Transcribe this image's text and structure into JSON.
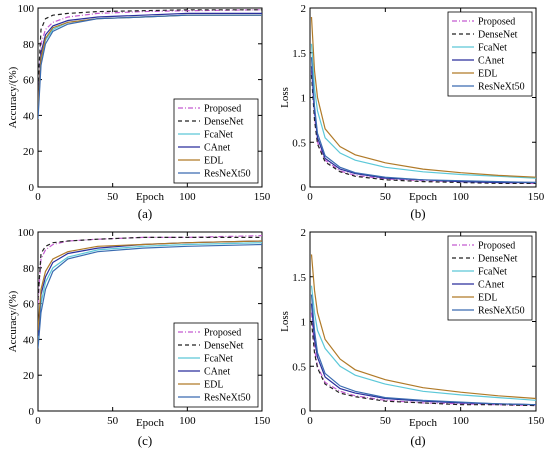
{
  "colors": {
    "Proposed": "#c45ad0",
    "DenseNet": "#222222",
    "FcaNet": "#5cc8d8",
    "CAnet": "#2a2f9c",
    "EDL": "#b07a28",
    "ResNeXt50": "#3a6bb0"
  },
  "chart_data": [
    {
      "id": "a",
      "type": "line",
      "caption": "(a)",
      "xlabel": "Epoch",
      "ylabel": "Accuracy/(%)",
      "xlim": [
        0,
        150
      ],
      "ylim": [
        0,
        100
      ],
      "xticks": [
        "0",
        "50",
        "100",
        "150"
      ],
      "yticks": [
        "0",
        "20",
        "40",
        "60",
        "80",
        "100"
      ],
      "legend": "bottom-right",
      "legend_order": [
        "Proposed",
        "DenseNet",
        "FcaNet",
        "CAnet",
        "EDL",
        "ResNeXt50"
      ],
      "series": [
        {
          "name": "Proposed",
          "x": [
            0,
            2,
            5,
            10,
            20,
            40,
            70,
            100,
            150
          ],
          "y": [
            40,
            80,
            88,
            92,
            95,
            97,
            98,
            98.5,
            99
          ]
        },
        {
          "name": "DenseNet",
          "x": [
            0,
            2,
            5,
            10,
            20,
            40,
            70,
            100,
            150
          ],
          "y": [
            55,
            88,
            94,
            96,
            97,
            98,
            98.5,
            99,
            99
          ]
        },
        {
          "name": "FcaNet",
          "x": [
            0,
            2,
            5,
            10,
            20,
            40,
            70,
            100,
            150
          ],
          "y": [
            42,
            70,
            82,
            88,
            92,
            94,
            95,
            96,
            96
          ]
        },
        {
          "name": "CAnet",
          "x": [
            0,
            2,
            5,
            10,
            20,
            40,
            70,
            100,
            150
          ],
          "y": [
            45,
            75,
            85,
            90,
            93,
            95,
            96,
            97,
            97
          ]
        },
        {
          "name": "EDL",
          "x": [
            0,
            2,
            5,
            10,
            20,
            40,
            70,
            100,
            150
          ],
          "y": [
            44,
            72,
            83,
            89,
            92,
            94,
            95,
            96,
            96
          ]
        },
        {
          "name": "ResNeXt50",
          "x": [
            0,
            2,
            5,
            10,
            20,
            40,
            70,
            100,
            150
          ],
          "y": [
            38,
            68,
            80,
            87,
            91,
            94,
            95,
            96,
            96
          ]
        }
      ]
    },
    {
      "id": "b",
      "type": "line",
      "caption": "(b)",
      "xlabel": "Epoch",
      "ylabel": "Loss",
      "xlim": [
        0,
        150
      ],
      "ylim": [
        0,
        2
      ],
      "xticks": [
        "0",
        "50",
        "100",
        "150"
      ],
      "yticks": [
        "0",
        "0.5",
        "1",
        "1.5",
        "2"
      ],
      "legend": "top-right",
      "legend_order": [
        "Proposed",
        "DenseNet",
        "FcaNet",
        "CAnet",
        "EDL",
        "ResNeXt50"
      ],
      "series": [
        {
          "name": "Proposed",
          "x": [
            1,
            3,
            5,
            10,
            20,
            30,
            50,
            75,
            100,
            125,
            150
          ],
          "y": [
            1.3,
            0.8,
            0.5,
            0.3,
            0.18,
            0.13,
            0.09,
            0.07,
            0.06,
            0.05,
            0.04
          ]
        },
        {
          "name": "DenseNet",
          "x": [
            1,
            3,
            5,
            10,
            20,
            30,
            50,
            75,
            100,
            125,
            150
          ],
          "y": [
            1.25,
            0.75,
            0.48,
            0.28,
            0.17,
            0.12,
            0.08,
            0.06,
            0.05,
            0.04,
            0.04
          ]
        },
        {
          "name": "FcaNet",
          "x": [
            1,
            3,
            5,
            10,
            20,
            30,
            50,
            75,
            100,
            125,
            150
          ],
          "y": [
            1.6,
            1.1,
            0.85,
            0.55,
            0.38,
            0.3,
            0.22,
            0.17,
            0.14,
            0.12,
            0.1
          ]
        },
        {
          "name": "CAnet",
          "x": [
            1,
            3,
            5,
            10,
            20,
            30,
            50,
            75,
            100,
            125,
            150
          ],
          "y": [
            1.35,
            0.85,
            0.55,
            0.32,
            0.2,
            0.15,
            0.1,
            0.08,
            0.06,
            0.05,
            0.05
          ]
        },
        {
          "name": "EDL",
          "x": [
            1,
            3,
            5,
            10,
            20,
            30,
            50,
            75,
            100,
            125,
            150
          ],
          "y": [
            1.9,
            1.3,
            1.0,
            0.65,
            0.45,
            0.36,
            0.27,
            0.2,
            0.16,
            0.13,
            0.11
          ]
        },
        {
          "name": "ResNeXt50",
          "x": [
            1,
            3,
            5,
            10,
            20,
            30,
            50,
            75,
            100,
            125,
            150
          ],
          "y": [
            1.45,
            0.9,
            0.6,
            0.35,
            0.22,
            0.16,
            0.11,
            0.08,
            0.07,
            0.06,
            0.05
          ]
        }
      ]
    },
    {
      "id": "c",
      "type": "line",
      "caption": "(c)",
      "xlabel": "Epoch",
      "ylabel": "Accuracy/(%)",
      "xlim": [
        0,
        150
      ],
      "ylim": [
        0,
        100
      ],
      "xticks": [
        "0",
        "50",
        "100",
        "150"
      ],
      "yticks": [
        "0",
        "20",
        "40",
        "60",
        "80",
        "100"
      ],
      "legend": "bottom-right",
      "legend_order": [
        "Proposed",
        "DenseNet",
        "FcaNet",
        "CAnet",
        "EDL",
        "ResNeXt50"
      ],
      "series": [
        {
          "name": "Proposed",
          "x": [
            0,
            2,
            5,
            10,
            20,
            40,
            70,
            100,
            150
          ],
          "y": [
            60,
            85,
            90,
            93,
            95,
            96,
            97,
            97,
            98
          ]
        },
        {
          "name": "DenseNet",
          "x": [
            0,
            2,
            5,
            10,
            20,
            40,
            70,
            100,
            150
          ],
          "y": [
            62,
            88,
            92,
            94,
            95,
            96,
            97,
            97,
            97
          ]
        },
        {
          "name": "FcaNet",
          "x": [
            0,
            2,
            5,
            10,
            20,
            40,
            70,
            100,
            150
          ],
          "y": [
            40,
            60,
            72,
            80,
            86,
            90,
            92,
            93,
            94
          ]
        },
        {
          "name": "CAnet",
          "x": [
            0,
            2,
            5,
            10,
            20,
            40,
            70,
            100,
            150
          ],
          "y": [
            42,
            65,
            75,
            83,
            88,
            91,
            93,
            94,
            95
          ]
        },
        {
          "name": "EDL",
          "x": [
            0,
            2,
            5,
            10,
            20,
            40,
            70,
            100,
            150
          ],
          "y": [
            45,
            68,
            78,
            85,
            89,
            92,
            93,
            94,
            95
          ]
        },
        {
          "name": "ResNeXt50",
          "x": [
            0,
            2,
            5,
            10,
            20,
            40,
            70,
            100,
            150
          ],
          "y": [
            35,
            55,
            68,
            78,
            85,
            89,
            91,
            92,
            93
          ]
        }
      ]
    },
    {
      "id": "d",
      "type": "line",
      "caption": "(d)",
      "xlabel": "Epoch",
      "ylabel": "Loss",
      "xlim": [
        0,
        150
      ],
      "ylim": [
        0,
        2
      ],
      "xticks": [
        "0",
        "50",
        "100",
        "150"
      ],
      "yticks": [
        "0",
        "0.5",
        "1",
        "1.5",
        "2"
      ],
      "legend": "top-right",
      "legend_order": [
        "Proposed",
        "DenseNet",
        "FcaNet",
        "CAnet",
        "EDL",
        "ResNeXt50"
      ],
      "series": [
        {
          "name": "Proposed",
          "x": [
            1,
            3,
            5,
            10,
            20,
            30,
            50,
            75,
            100,
            125,
            150
          ],
          "y": [
            1.1,
            0.7,
            0.5,
            0.32,
            0.22,
            0.17,
            0.12,
            0.09,
            0.08,
            0.07,
            0.06
          ]
        },
        {
          "name": "DenseNet",
          "x": [
            1,
            3,
            5,
            10,
            20,
            30,
            50,
            75,
            100,
            125,
            150
          ],
          "y": [
            1.0,
            0.65,
            0.48,
            0.3,
            0.2,
            0.16,
            0.11,
            0.09,
            0.07,
            0.07,
            0.06
          ]
        },
        {
          "name": "FcaNet",
          "x": [
            1,
            3,
            5,
            10,
            20,
            30,
            50,
            75,
            100,
            125,
            150
          ],
          "y": [
            1.4,
            1.1,
            0.9,
            0.7,
            0.5,
            0.4,
            0.3,
            0.22,
            0.18,
            0.15,
            0.12
          ]
        },
        {
          "name": "CAnet",
          "x": [
            1,
            3,
            5,
            10,
            20,
            30,
            50,
            75,
            100,
            125,
            150
          ],
          "y": [
            1.2,
            0.8,
            0.6,
            0.38,
            0.25,
            0.2,
            0.14,
            0.11,
            0.09,
            0.08,
            0.07
          ]
        },
        {
          "name": "EDL",
          "x": [
            1,
            3,
            5,
            10,
            20,
            30,
            50,
            75,
            100,
            125,
            150
          ],
          "y": [
            1.75,
            1.35,
            1.1,
            0.8,
            0.58,
            0.46,
            0.35,
            0.26,
            0.21,
            0.17,
            0.14
          ]
        },
        {
          "name": "ResNeXt50",
          "x": [
            1,
            3,
            5,
            10,
            20,
            30,
            50,
            75,
            100,
            125,
            150
          ],
          "y": [
            1.3,
            0.9,
            0.65,
            0.42,
            0.28,
            0.22,
            0.15,
            0.12,
            0.1,
            0.08,
            0.07
          ]
        }
      ]
    }
  ]
}
